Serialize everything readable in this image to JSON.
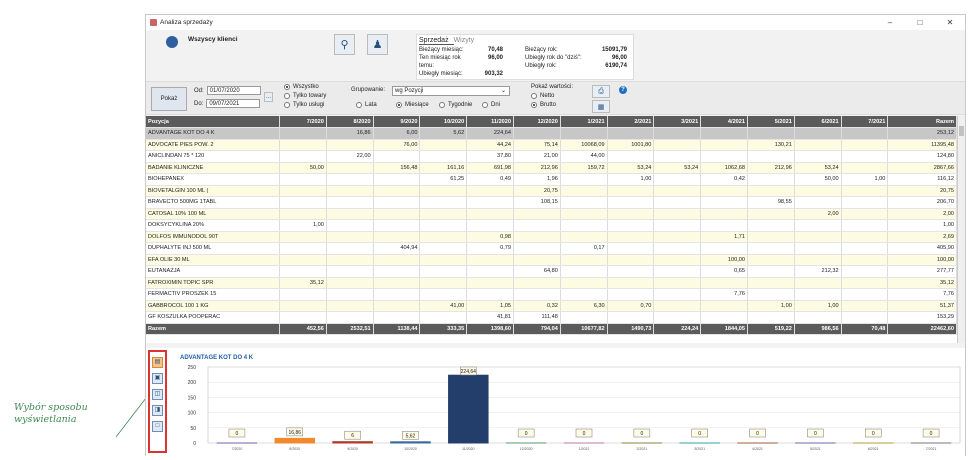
{
  "window": {
    "title": "Analiza sprzedaży"
  },
  "client": {
    "name": "Wszyscy klienci"
  },
  "summary": {
    "tabs": [
      "Sprzedaż",
      "Wizyty"
    ],
    "left": [
      {
        "label": "Bieżący miesiąc:",
        "value": "70,48"
      },
      {
        "label": "Ten miesiąc rok temu:",
        "value": "96,00"
      },
      {
        "label": "Ubiegły miesiąc:",
        "value": "903,32"
      }
    ],
    "right": [
      {
        "label": "Bieżący rok:",
        "value": "15091,79"
      },
      {
        "label": "Ubiegły rok do \"dziś\":",
        "value": "96,00"
      },
      {
        "label": "Ubiegły rok:",
        "value": "6190,74"
      }
    ]
  },
  "filters": {
    "pokaz_label": "Pokaż",
    "od_label": "Od:",
    "od_value": "01/07/2020",
    "do_label": "Do:",
    "do_value": "09/07/2021",
    "dots": "...",
    "scope": [
      "Wszystko",
      "Tylko towary",
      "Tylko usługi"
    ],
    "grouping_label": "Grupowanie:",
    "grouping_value": "wg Pozycji",
    "periods": [
      "Lata",
      "Miesiące",
      "Tygodnie",
      "Dni"
    ],
    "value_label": "Pokaż wartości:",
    "value_options": [
      "Netto",
      "Brutto"
    ],
    "help": "?"
  },
  "table": {
    "headers": [
      "Pozycja",
      "7/2020",
      "8/2020",
      "9/2020",
      "10/2020",
      "11/2020",
      "12/2020",
      "1/2021",
      "2/2021",
      "3/2021",
      "4/2021",
      "5/2021",
      "6/2021",
      "7/2021",
      "Razem"
    ],
    "rows": [
      [
        "ADVANTAGE KOT DO 4 K",
        "",
        "16,86",
        "6,00",
        "5,62",
        "224,64",
        "",
        "",
        "",
        "",
        "",
        "",
        "",
        "",
        "253,12"
      ],
      [
        "ADVOCATE PIES POW. 2",
        "",
        "",
        "76,00",
        "",
        "44,24",
        "75,14",
        "10068,09",
        "1001,80",
        "",
        "",
        "130,21",
        "",
        "",
        "11395,48"
      ],
      [
        "ANICLINDAN 75 * 120",
        "",
        "22,00",
        "",
        "",
        "37,80",
        "21,00",
        "44,00",
        "",
        "",
        "",
        "",
        "",
        "",
        "124,80"
      ],
      [
        "BADANIE KLINICZNE",
        "50,00",
        "",
        "156,48",
        "161,16",
        "691,98",
        "212,96",
        "159,72",
        "53,24",
        "53,24",
        "1062,68",
        "212,96",
        "53,24",
        "",
        "2867,66"
      ],
      [
        "BIOHEPANEX",
        "",
        "",
        "",
        "61,25",
        "0,49",
        "1,96",
        "",
        "1,00",
        "",
        "0,42",
        "",
        "50,00",
        "1,00",
        "116,12"
      ],
      [
        "BIOVETALGIN 100 ML (",
        "",
        "",
        "",
        "",
        "",
        "20,75",
        "",
        "",
        "",
        "",
        "",
        "",
        "",
        "20,75"
      ],
      [
        "BRAVECTO 500MG 1TABL",
        "",
        "",
        "",
        "",
        "",
        "108,15",
        "",
        "",
        "",
        "",
        "98,55",
        "",
        "",
        "206,70"
      ],
      [
        "CATOSAL 10% 100 ML",
        "",
        "",
        "",
        "",
        "",
        "",
        "",
        "",
        "",
        "",
        "",
        "2,00",
        "",
        "2,00"
      ],
      [
        "DOKSYCYKLINA 20%",
        "1,00",
        "",
        "",
        "",
        "",
        "",
        "",
        "",
        "",
        "",
        "",
        "",
        "",
        "1,00"
      ],
      [
        "DOLFOS IMMUNODOL 90T",
        "",
        "",
        "",
        "",
        "0,98",
        "",
        "",
        "",
        "",
        "1,71",
        "",
        "",
        "",
        "2,69"
      ],
      [
        "DUPHALYTE INJ 500 ML",
        "",
        "",
        "404,94",
        "",
        "0,79",
        "",
        "0,17",
        "",
        "",
        "",
        "",
        "",
        "",
        "405,90"
      ],
      [
        "EFA OLIE 30 ML",
        "",
        "",
        "",
        "",
        "",
        "",
        "",
        "",
        "",
        "100,00",
        "",
        "",
        "",
        "100,00"
      ],
      [
        "EUTANAZJA",
        "",
        "",
        "",
        "",
        "",
        "64,80",
        "",
        "",
        "",
        "0,65",
        "",
        "212,32",
        "",
        "277,77"
      ],
      [
        "FATROXIMIN TOPIC SPR",
        "35,12",
        "",
        "",
        "",
        "",
        "",
        "",
        "",
        "",
        "",
        "",
        "",
        "",
        "35,12"
      ],
      [
        "FERMACTIV PROSZEK 15",
        "",
        "",
        "",
        "",
        "",
        "",
        "",
        "",
        "",
        "7,76",
        "",
        "",
        "",
        "7,76"
      ],
      [
        "GABBROCOL 100 1 KG",
        "",
        "",
        "",
        "41,00",
        "1,05",
        "0,32",
        "6,30",
        "0,70",
        "",
        "",
        "1,00",
        "1,00",
        "",
        "51,37"
      ],
      [
        "GF KOSZULKA POOPERAC",
        "",
        "",
        "",
        "",
        "41,81",
        "111,48",
        "",
        "",
        "",
        "",
        "",
        "",
        "",
        "153,29"
      ]
    ],
    "total": [
      "Razem",
      "452,56",
      "2532,51",
      "1138,44",
      "333,35",
      "1398,60",
      "794,04",
      "10677,82",
      "1490,73",
      "224,24",
      "1844,05",
      "519,22",
      "986,56",
      "70,48",
      "22462,60"
    ]
  },
  "chart_data": {
    "type": "bar",
    "title": "ADVANTAGE KOT DO 4 K",
    "categories": [
      "7/2020",
      "8/2020",
      "9/2020",
      "10/2020",
      "11/2020",
      "12/2020",
      "1/2021",
      "2/2021",
      "3/2021",
      "4/2021",
      "5/2021",
      "6/2021",
      "7/2021"
    ],
    "values": [
      0,
      16.86,
      6,
      5.62,
      224.64,
      0,
      0,
      0,
      0,
      0,
      0,
      0,
      0
    ],
    "labels": [
      "0",
      "16,86",
      "6",
      "5,62",
      "224,64",
      "0",
      "0",
      "0",
      "0",
      "0",
      "0",
      "0",
      "0"
    ],
    "colors": [
      "#7b5ea7",
      "#f08a2c",
      "#b13a2b",
      "#3a6b9e",
      "#243e6b",
      "#5a9a6a",
      "#c07aa6",
      "#8a8a3a",
      "#3aa0a0",
      "#a05a3a",
      "#6a6ab0",
      "#b0a03a",
      "#7a7a7a"
    ],
    "ylim": [
      0,
      250
    ],
    "yticks": [
      0,
      50,
      100,
      150,
      200,
      250
    ],
    "grid": true
  },
  "display_modes": [
    "table-chart",
    "chart-bottom",
    "split-horizontal",
    "split-vertical",
    "table-only"
  ],
  "annotation": {
    "line1": "Wybór sposobu",
    "line2": "wyświetlania"
  }
}
